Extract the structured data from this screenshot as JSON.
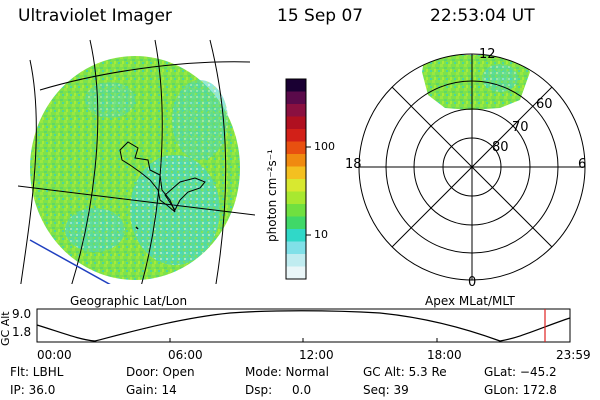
{
  "header": {
    "title": "Ultraviolet Imager",
    "date": "15 Sep 07",
    "time": "22:53:04 UT"
  },
  "left_panel": {
    "caption": "Geographic Lat/Lon"
  },
  "colorbar": {
    "unit_label": "photon cm⁻²s⁻¹",
    "ticks": [
      "100",
      "10"
    ],
    "colors": [
      "#1a0033",
      "#5a0a4a",
      "#8a1040",
      "#b01020",
      "#d22018",
      "#e85010",
      "#f08a10",
      "#f4c020",
      "#d8e830",
      "#a8e830",
      "#70e040",
      "#40d868",
      "#30d8c8",
      "#80e0e8",
      "#c0ecf0",
      "#eaf6f8"
    ]
  },
  "right_panel": {
    "caption": "Apex MLat/MLT",
    "mlt_labels": {
      "top": "12",
      "left": "18",
      "right": "6",
      "bottom": "0"
    },
    "lat_labels": [
      "60",
      "70",
      "80"
    ]
  },
  "altitude_plot": {
    "axis_label": "GC Alt",
    "y_ticks": [
      "9.0",
      "1.8"
    ],
    "x_ticks": [
      "00:00",
      "06:00",
      "12:00",
      "18:00",
      "23:59"
    ],
    "marker_color": "#e02020"
  },
  "info": {
    "filter": "Flt: LBHL",
    "ip": "IP: 36.0",
    "door": "Door: Open",
    "gain": "Gain: 14",
    "mode": "Mode: Normal",
    "dsp_label": "Dsp:",
    "dsp_value": "0.0",
    "gc_alt": "GC Alt: 5.3 Re",
    "seq": "Seq: 39",
    "glat": "GLat: −45.2",
    "glon": "GLon: 172.8"
  },
  "icons": {
    "map_image": "uv-aurora-geographic-image",
    "polar_image": "uv-aurora-polar-image"
  }
}
